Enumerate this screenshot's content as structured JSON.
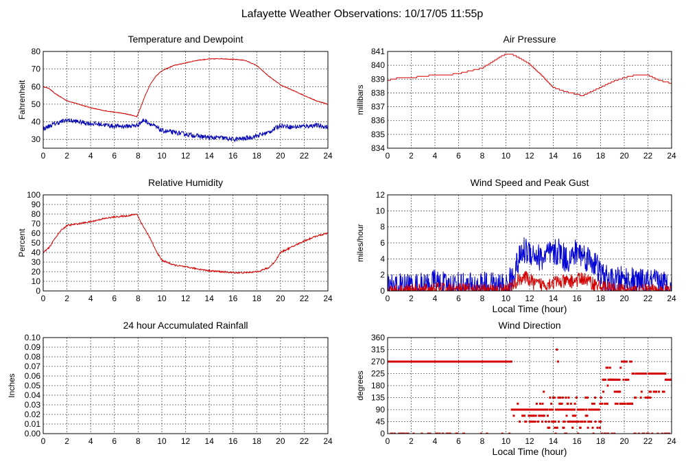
{
  "page_title": "Lafayette Weather Observations: 10/17/05 11:55p",
  "chart_data": [
    {
      "id": "temp",
      "type": "line",
      "title": "Temperature and Dewpoint",
      "xlabel": "",
      "ylabel": "Fahrenheit",
      "xlim": [
        0,
        24
      ],
      "ylim": [
        25,
        80
      ],
      "xticks": [
        0,
        2,
        4,
        6,
        8,
        10,
        12,
        14,
        16,
        18,
        20,
        22,
        24
      ],
      "yticks": [
        30,
        40,
        50,
        60,
        70,
        80
      ],
      "grid": true,
      "series": [
        {
          "color": "#d40000",
          "noise": 0.2,
          "x": [
            0,
            0.5,
            1,
            2,
            3,
            4,
            5,
            6,
            7,
            7.9,
            8.2,
            8.6,
            9,
            9.5,
            10,
            11,
            12,
            13,
            14,
            15,
            16,
            17,
            18,
            19,
            20,
            21,
            22,
            23,
            24
          ],
          "y": [
            60,
            59,
            56,
            52,
            50,
            48,
            46.5,
            45.5,
            44.5,
            43,
            48,
            55,
            61,
            66,
            69,
            72,
            73.5,
            75,
            75.7,
            75.9,
            75.5,
            75,
            72,
            66,
            61,
            58,
            55,
            52,
            50
          ]
        },
        {
          "color": "#0000b4",
          "noise": 1.3,
          "x": [
            0,
            1,
            2,
            3,
            4,
            5,
            6,
            7,
            7.9,
            8.5,
            9,
            10,
            11,
            12,
            13,
            14,
            15,
            16,
            17,
            18,
            19,
            20,
            21,
            22,
            23,
            24
          ],
          "y": [
            36,
            39,
            41,
            40,
            39,
            38.5,
            37.5,
            37.5,
            38,
            41,
            39,
            35,
            34,
            33,
            32,
            31,
            31,
            30,
            30.5,
            32,
            34,
            38,
            37,
            37.5,
            38,
            37
          ]
        }
      ]
    },
    {
      "id": "pressure",
      "type": "line",
      "title": "Air Pressure",
      "xlabel": "",
      "ylabel": "millibars",
      "xlim": [
        0,
        24
      ],
      "ylim": [
        834,
        841
      ],
      "xticks": [
        0,
        2,
        4,
        6,
        8,
        10,
        12,
        14,
        16,
        18,
        20,
        22,
        24
      ],
      "yticks": [
        834,
        835,
        836,
        837,
        838,
        839,
        840,
        841
      ],
      "grid": true,
      "series": [
        {
          "color": "#d40000",
          "noise": 0,
          "step": 0.1,
          "x": [
            0,
            1,
            2,
            3,
            4,
            5,
            6,
            7,
            8,
            8.8,
            9.5,
            10,
            10.5,
            11,
            12,
            13,
            14,
            15,
            16,
            16.5,
            17,
            18,
            19,
            20,
            21,
            22,
            23,
            24
          ],
          "y": [
            838.9,
            839.1,
            839.1,
            839.2,
            839.3,
            839.3,
            839.4,
            839.6,
            839.8,
            840.2,
            840.6,
            840.8,
            840.8,
            840.6,
            840.1,
            839.3,
            838.4,
            838.1,
            837.9,
            837.8,
            838,
            838.4,
            838.8,
            839.1,
            839.3,
            839.3,
            838.9,
            838.7
          ]
        }
      ]
    },
    {
      "id": "humidity",
      "type": "line",
      "title": "Relative Humidity",
      "xlabel": "",
      "ylabel": "Percent",
      "xlim": [
        0,
        24
      ],
      "ylim": [
        0,
        100
      ],
      "xticks": [
        0,
        2,
        4,
        6,
        8,
        10,
        12,
        14,
        16,
        18,
        20,
        22,
        24
      ],
      "yticks": [
        0,
        10,
        20,
        30,
        40,
        50,
        60,
        70,
        80,
        90,
        100
      ],
      "grid": true,
      "series": [
        {
          "color": "#d40000",
          "noise": 0.8,
          "x": [
            0,
            0.5,
            1,
            1.5,
            2,
            3,
            4,
            5,
            6,
            7,
            7.9,
            8.3,
            9,
            9.5,
            10,
            11,
            12,
            13,
            14,
            15,
            16,
            17,
            18,
            19,
            19.5,
            20,
            21,
            22,
            23,
            24
          ],
          "y": [
            40,
            45,
            55,
            63,
            68,
            70,
            72,
            75,
            77,
            78,
            80,
            70,
            55,
            42,
            32,
            27,
            25,
            23,
            21,
            20,
            19,
            19,
            20,
            24,
            30,
            40,
            46,
            52,
            57,
            60
          ]
        }
      ]
    },
    {
      "id": "wind",
      "type": "line",
      "title": "Wind Speed and Peak Gust",
      "xlabel": "Local Time (hour)",
      "ylabel": "miles/hour",
      "xlim": [
        0,
        24
      ],
      "ylim": [
        0,
        12
      ],
      "xticks": [
        0,
        2,
        4,
        6,
        8,
        10,
        12,
        14,
        16,
        18,
        20,
        22,
        24
      ],
      "yticks": [
        0,
        2,
        4,
        6,
        8,
        10,
        12
      ],
      "grid": true,
      "series": [
        {
          "color": "#0000d2",
          "noise": 1.8,
          "clip0": true,
          "x": [
            0,
            1,
            2,
            3,
            4,
            5,
            6,
            7,
            8,
            9,
            10,
            10.5,
            11,
            11.5,
            12,
            12.5,
            13,
            13.5,
            14,
            14.5,
            15,
            15.5,
            16,
            16.5,
            17,
            17.5,
            18,
            19,
            20,
            21,
            22,
            23,
            24
          ],
          "y": [
            0.5,
            0.5,
            0.5,
            0.5,
            1,
            0.5,
            0.7,
            0.5,
            0.7,
            0.5,
            0.5,
            1.5,
            3.5,
            5,
            5,
            4.5,
            4,
            4.5,
            4.5,
            5,
            4,
            4,
            5,
            4.5,
            4,
            3.5,
            2,
            1,
            1.5,
            1,
            1,
            1,
            0.5
          ]
        },
        {
          "color": "#d40000",
          "noise": 0.9,
          "clip0": true,
          "x": [
            0,
            3,
            3.8,
            5,
            8,
            10,
            10.6,
            11.2,
            11.8,
            12.5,
            13,
            14,
            15,
            16,
            16.5,
            17,
            18,
            19,
            20,
            24
          ],
          "y": [
            0,
            0,
            0.2,
            0.2,
            0,
            0.1,
            0.6,
            1.6,
            1.6,
            0.8,
            0.8,
            1.1,
            1.1,
            1.3,
            1.6,
            1.2,
            0.5,
            0.2,
            0,
            0
          ]
        }
      ]
    },
    {
      "id": "rain",
      "type": "line",
      "title": "24 hour Accumulated Rainfall",
      "xlabel": "",
      "ylabel": "Inches",
      "xlim": [
        0,
        24
      ],
      "ylim": [
        0,
        0.1
      ],
      "xticks": [
        0,
        2,
        4,
        6,
        8,
        10,
        12,
        14,
        16,
        18,
        20,
        22,
        24
      ],
      "yticks": [
        "0.00",
        "0.01",
        "0.02",
        "0.03",
        "0.04",
        "0.05",
        "0.06",
        "0.07",
        "0.08",
        "0.09",
        "0.10"
      ],
      "grid": true,
      "series": [
        {
          "color": "#d40000",
          "noise": 0,
          "x": [
            0,
            24
          ],
          "y": [
            0,
            0
          ]
        }
      ]
    },
    {
      "id": "direction",
      "type": "scatter",
      "title": "Wind Direction",
      "xlabel": "Local Time (hour)",
      "ylabel": "degrees",
      "xlim": [
        0,
        24
      ],
      "ylim": [
        0,
        360
      ],
      "xticks": [
        0,
        2,
        4,
        6,
        8,
        10,
        12,
        14,
        16,
        18,
        20,
        22,
        24
      ],
      "yticks": [
        0,
        45,
        90,
        135,
        180,
        225,
        270,
        315,
        360
      ],
      "grid": true,
      "color": "#d40000",
      "segments": [
        {
          "from": 0,
          "to": 10.5,
          "values": [
            270,
            270,
            270,
            270,
            0
          ]
        },
        {
          "from": 10.5,
          "to": 13.5,
          "values": [
            90,
            90,
            67,
            45,
            90,
            90,
            112
          ]
        },
        {
          "from": 13.5,
          "to": 18.2,
          "values": [
            90,
            45,
            90,
            67,
            112,
            135,
            90,
            45,
            22,
            90,
            0
          ]
        },
        {
          "from": 18.2,
          "to": 19.8,
          "values": [
            112,
            157,
            202,
            202,
            0,
            247
          ]
        },
        {
          "from": 19.8,
          "to": 20.7,
          "values": [
            270,
            202,
            112
          ]
        },
        {
          "from": 20.7,
          "to": 23.5,
          "values": [
            225,
            225,
            225,
            0,
            157,
            135
          ]
        },
        {
          "from": 23.5,
          "to": 24,
          "values": [
            202,
            0
          ]
        }
      ],
      "points": [
        [
          14.3,
          315
        ],
        [
          14.4,
          270
        ],
        [
          13.2,
          157
        ],
        [
          18.6,
          180
        ]
      ]
    }
  ]
}
